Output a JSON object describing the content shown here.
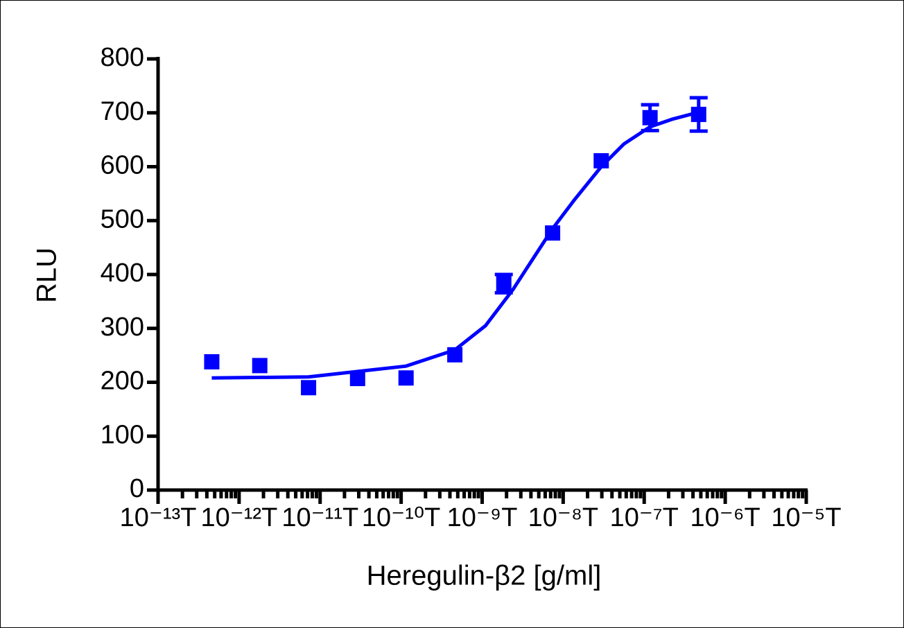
{
  "chart_data": {
    "type": "scatter",
    "x_label": "Heregulin-β2 [g/ml]",
    "y_label": "RLU",
    "x_scale": "log",
    "xlim": [
      1e-13,
      1e-05
    ],
    "xticks": [
      {
        "value": 1e-13,
        "label": "10⁻¹³T"
      },
      {
        "value": 1e-12,
        "label": "10⁻¹²T"
      },
      {
        "value": 1e-11,
        "label": "10⁻¹¹T"
      },
      {
        "value": 1e-10,
        "label": "10⁻¹⁰T"
      },
      {
        "value": 1e-09,
        "label": "10⁻⁹T"
      },
      {
        "value": 1e-08,
        "label": "10⁻⁸T"
      },
      {
        "value": 1e-07,
        "label": "10⁻⁷T"
      },
      {
        "value": 1e-06,
        "label": "10⁻⁶T"
      },
      {
        "value": 1e-05,
        "label": "10⁻⁵T"
      }
    ],
    "minor_ticks": true,
    "ylim": [
      0,
      800
    ],
    "yticks": [
      0,
      100,
      200,
      300,
      400,
      500,
      600,
      700,
      800
    ],
    "series": [
      {
        "kind": "points",
        "color": "#0000ff",
        "x": [
          4.6e-13,
          1.8e-12,
          7.2e-12,
          2.9e-11,
          1.15e-10,
          4.6e-10,
          1.85e-09,
          7.4e-09,
          2.95e-08,
          1.18e-07,
          4.7e-07
        ],
        "values": [
          238,
          231,
          190,
          207,
          208,
          251,
          383,
          477,
          611,
          691,
          697
        ],
        "errors": [
          0,
          0,
          0,
          0,
          0,
          0,
          17,
          0,
          0,
          24,
          31
        ]
      },
      {
        "kind": "fit",
        "color": "#0000ff",
        "x": [
          4.6e-13,
          7.2e-12,
          1.15e-10,
          4.6e-10,
          1.1e-09,
          2.4e-09,
          4.4e-09,
          7.4e-09,
          1.4e-08,
          2.95e-08,
          5.6e-08,
          1.18e-07,
          2.2e-07,
          4.7e-07
        ],
        "values": [
          208,
          210,
          230,
          260,
          305,
          372,
          433,
          485,
          540,
          600,
          642,
          674,
          688,
          701
        ]
      }
    ]
  }
}
